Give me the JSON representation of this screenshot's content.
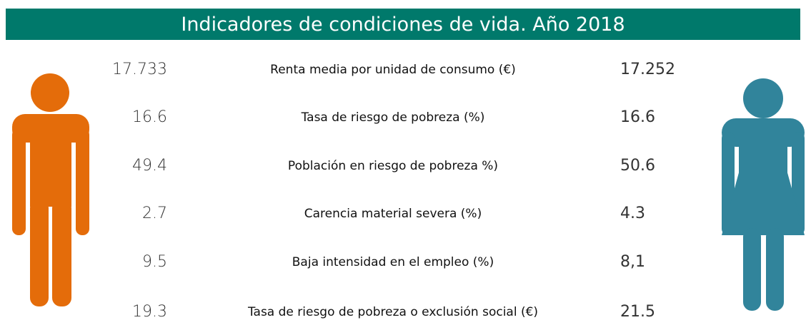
{
  "header": {
    "title": "Indicadores de condiciones de vida. Año 2018"
  },
  "table": {
    "rows": [
      {
        "men": "17.733",
        "label": "Renta media por unidad de consumo (€)",
        "women": "17.252"
      },
      {
        "men": "16.6",
        "label": "Tasa de riesgo de pobreza (%)",
        "women": "16.6"
      },
      {
        "men": "49.4",
        "label": "Población en riesgo de pobreza %)",
        "women": "50.6"
      },
      {
        "men": "2.7",
        "label": "Carencia material severa (%)",
        "women": "4.3"
      },
      {
        "men": "9.5",
        "label": "Baja intensidad en el empleo (%)",
        "women": "8,1"
      },
      {
        "men": "19.3",
        "label": "Tasa de riesgo de pobreza o exclusión social (€)",
        "women": "21.5"
      }
    ]
  }
}
